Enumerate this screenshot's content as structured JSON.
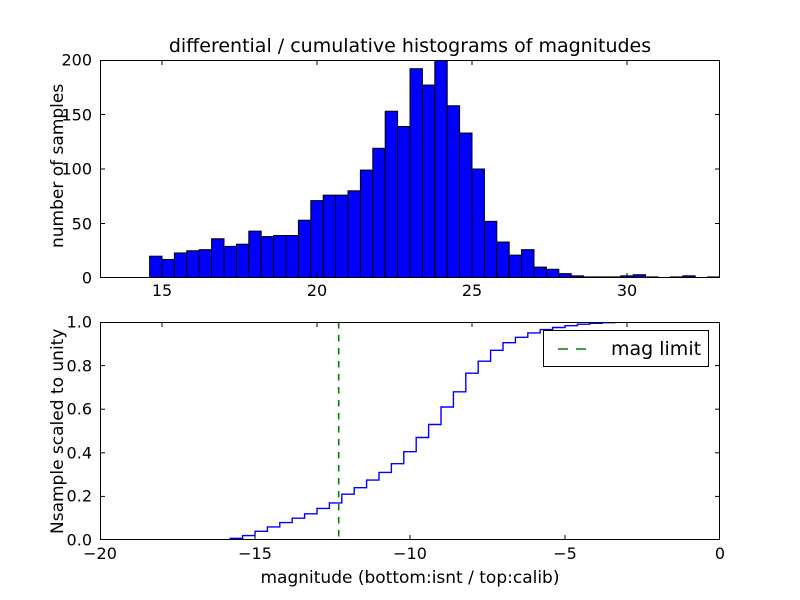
{
  "figure": {
    "title": "differential / cumulative histograms of magnitudes"
  },
  "top_plot": {
    "ylabel": "number of samples",
    "x_ticks": [
      {
        "label": "15",
        "value": 15
      },
      {
        "label": "20",
        "value": 20
      },
      {
        "label": "25",
        "value": 25
      },
      {
        "label": "30",
        "value": 30
      }
    ],
    "y_ticks": [
      {
        "label": "0",
        "value": 0
      },
      {
        "label": "50",
        "value": 50
      },
      {
        "label": "100",
        "value": 100
      },
      {
        "label": "150",
        "value": 150
      },
      {
        "label": "200",
        "value": 200
      }
    ]
  },
  "bottom_plot": {
    "ylabel": "Nsample scaled to unity",
    "xlabel": "magnitude (bottom:isnt / top:calib)",
    "x_ticks": [
      {
        "label": "−20",
        "value": -20
      },
      {
        "label": "−15",
        "value": -15
      },
      {
        "label": "−10",
        "value": -10
      },
      {
        "label": "−5",
        "value": -5
      },
      {
        "label": "0",
        "value": 0
      }
    ],
    "y_ticks": [
      {
        "label": "0.0",
        "value": 0.0
      },
      {
        "label": "0.2",
        "value": 0.2
      },
      {
        "label": "0.4",
        "value": 0.4
      },
      {
        "label": "0.6",
        "value": 0.6
      },
      {
        "label": "0.8",
        "value": 0.8
      },
      {
        "label": "1.0",
        "value": 1.0
      }
    ],
    "legend": {
      "label": "mag limit"
    }
  },
  "colors": {
    "bar_fill": "#0000ff",
    "bar_edge": "#000000",
    "curve": "#0000ff",
    "mag_limit_line": "#008000",
    "axes_edge": "#000000"
  },
  "chart_data": [
    {
      "type": "bar",
      "subplot": "top",
      "title": "differential / cumulative histograms of magnitudes",
      "ylabel": "number of samples",
      "xlim": [
        13,
        33
      ],
      "ylim": [
        0,
        200
      ],
      "xticks": [
        15,
        20,
        25,
        30
      ],
      "yticks": [
        0,
        50,
        100,
        150,
        200
      ],
      "bin_start": 14.6,
      "bin_width": 0.4,
      "values": [
        20,
        17,
        23,
        25,
        26,
        36,
        29,
        31,
        43,
        38,
        39,
        39,
        53,
        71,
        76,
        76,
        80,
        99,
        119,
        153,
        139,
        192,
        177,
        200,
        158,
        133,
        100,
        52,
        33,
        21,
        26,
        10,
        8,
        4,
        2,
        1,
        1,
        1,
        2,
        3,
        1,
        0,
        1,
        2,
        0,
        1
      ],
      "grid": false,
      "legend": null
    },
    {
      "type": "line",
      "subplot": "bottom",
      "style": "step-cumulative",
      "ylabel": "Nsample scaled to unity",
      "xlabel": "magnitude (bottom:isnt / top:calib)",
      "xlim": [
        -20,
        0
      ],
      "ylim": [
        0.0,
        1.0
      ],
      "xticks": [
        -20,
        -15,
        -10,
        -5,
        0
      ],
      "yticks": [
        0.0,
        0.2,
        0.4,
        0.6,
        0.8,
        1.0
      ],
      "top_axis_ticks_calib": [
        15,
        20,
        25,
        30
      ],
      "calib_offset": 33,
      "bin_start": -15.8,
      "bin_width": 0.4,
      "cumulative_values": [
        0.008,
        0.02,
        0.04,
        0.06,
        0.08,
        0.1,
        0.12,
        0.145,
        0.17,
        0.21,
        0.24,
        0.275,
        0.31,
        0.35,
        0.405,
        0.47,
        0.53,
        0.61,
        0.68,
        0.765,
        0.82,
        0.87,
        0.905,
        0.93,
        0.95,
        0.965,
        0.975,
        0.983,
        0.99,
        0.994,
        0.997,
        0.999,
        1.0
      ],
      "vline": {
        "x": -12.3,
        "style": "dashed",
        "color": "#008000",
        "label": "mag limit"
      },
      "legend": {
        "label": "mag limit",
        "position": "upper right"
      },
      "grid": false
    }
  ]
}
